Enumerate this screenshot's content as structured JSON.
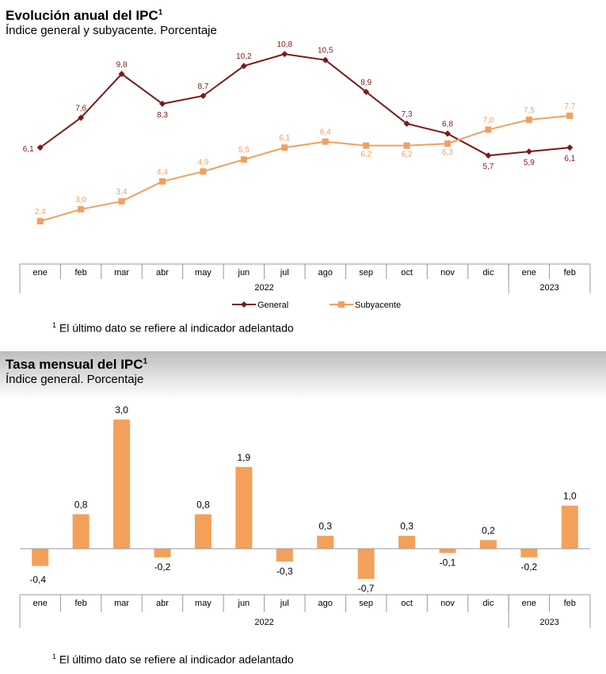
{
  "charts": [
    {
      "title": "Evolución anual del IPC",
      "title_sup": "1",
      "subtitle": "Índice general y subyacente. Porcentaje",
      "footnote_mark": "1",
      "footnote": "El último dato se refiere al indicador adelantado"
    },
    {
      "title": "Tasa mensual del IPC",
      "title_sup": "1",
      "subtitle": "Índice general. Porcentaje",
      "footnote_mark": "1",
      "footnote": "El último dato se refiere al indicador adelantado"
    }
  ],
  "chart_data": [
    {
      "type": "line",
      "categories": [
        "ene",
        "feb",
        "mar",
        "abr",
        "may",
        "jun",
        "jul",
        "ago",
        "sep",
        "oct",
        "nov",
        "dic",
        "ene",
        "feb"
      ],
      "years": [
        {
          "label": "2022",
          "span": 12
        },
        {
          "label": "2023",
          "span": 2
        }
      ],
      "series": [
        {
          "name": "General",
          "color": "#7b1a1a",
          "marker": "diamond",
          "values": [
            6.1,
            7.6,
            9.8,
            8.3,
            8.7,
            10.2,
            10.8,
            10.5,
            8.9,
            7.3,
            6.8,
            5.7,
            5.9,
            6.1
          ],
          "labels": [
            "6,1",
            "7,6",
            "9,8",
            "8,3",
            "8,7",
            "10,2",
            "10,8",
            "10,5",
            "8,9",
            "7,3",
            "6,8",
            "5,7",
            "5,9",
            "6,1"
          ]
        },
        {
          "name": "Subyacente",
          "color": "#f0a060",
          "marker": "square",
          "values": [
            2.4,
            3.0,
            3.4,
            4.4,
            4.9,
            5.5,
            6.1,
            6.4,
            6.2,
            6.2,
            6.3,
            7.0,
            7.5,
            7.7
          ],
          "labels": [
            "2,4",
            "3,0",
            "3,4",
            "4,4",
            "4,9",
            "5,5",
            "6,1",
            "6,4",
            "6,2",
            "6,2",
            "6,3",
            "7,0",
            "7,5",
            "7,7"
          ]
        }
      ],
      "legend": "bottom-center",
      "grid": false
    },
    {
      "type": "bar",
      "categories": [
        "ene",
        "feb",
        "mar",
        "abr",
        "may",
        "jun",
        "jul",
        "ago",
        "sep",
        "oct",
        "nov",
        "dic",
        "ene",
        "feb"
      ],
      "years": [
        {
          "label": "2022",
          "span": 12
        },
        {
          "label": "2023",
          "span": 2
        }
      ],
      "values": [
        -0.4,
        0.8,
        3.0,
        -0.2,
        0.8,
        1.9,
        -0.3,
        0.3,
        -0.7,
        0.3,
        -0.1,
        0.2,
        -0.2,
        1.0
      ],
      "labels": [
        "-0,4",
        "0,8",
        "3,0",
        "-0,2",
        "0,8",
        "1,9",
        "-0,3",
        "0,3",
        "-0,7",
        "0,3",
        "-0,1",
        "0,2",
        "-0,2",
        "1,0"
      ],
      "color": "#f5a05a",
      "grid": false
    }
  ]
}
